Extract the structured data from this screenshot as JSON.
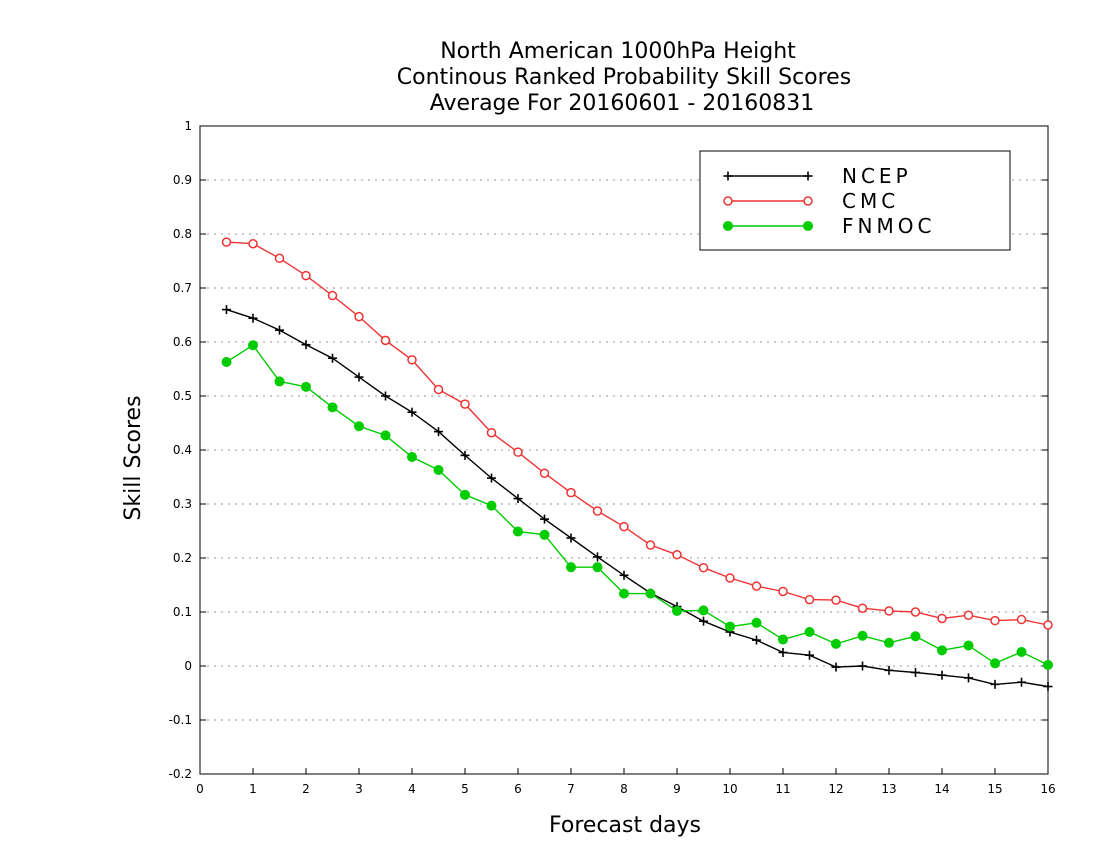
{
  "chart_data": {
    "type": "line",
    "title_lines": [
      "North American 1000hPa Height",
      "Continous Ranked Probability Skill Scores",
      "Average For 20160601 - 20160831"
    ],
    "xlabel": "Forecast days",
    "ylabel": "Skill Scores",
    "xlim": [
      0,
      16
    ],
    "ylim": [
      -0.2,
      1
    ],
    "x_ticks": [
      0,
      1,
      2,
      3,
      4,
      5,
      6,
      7,
      8,
      9,
      10,
      11,
      12,
      13,
      14,
      15,
      16
    ],
    "y_ticks": [
      -0.2,
      -0.1,
      0,
      0.1,
      0.2,
      0.3,
      0.4,
      0.5,
      0.6,
      0.7,
      0.8,
      0.9,
      1
    ],
    "y_tick_labels": [
      "-0.2",
      "-0.1",
      "0",
      "0.1",
      "0.2",
      "0.3",
      "0.4",
      "0.5",
      "0.6",
      "0.7",
      "0.8",
      "0.9",
      "1"
    ],
    "grid": "horizontal-dotted",
    "legend_position": "top-right",
    "x": [
      0.5,
      1,
      1.5,
      2,
      2.5,
      3,
      3.5,
      4,
      4.5,
      5,
      5.5,
      6,
      6.5,
      7,
      7.5,
      8,
      8.5,
      9,
      9.5,
      10,
      10.5,
      11,
      11.5,
      12,
      12.5,
      13,
      13.5,
      14,
      14.5,
      15,
      15.5,
      16
    ],
    "series": [
      {
        "name": "NCEP",
        "color": "#000000",
        "marker": "plus",
        "values": [
          0.66,
          0.644,
          0.622,
          0.595,
          0.57,
          0.535,
          0.5,
          0.47,
          0.434,
          0.39,
          0.348,
          0.31,
          0.272,
          0.237,
          0.202,
          0.168,
          0.135,
          0.11,
          0.083,
          0.063,
          0.048,
          0.025,
          0.02,
          -0.002,
          0.0,
          -0.008,
          -0.012,
          -0.017,
          -0.022,
          -0.034,
          -0.03,
          -0.038
        ]
      },
      {
        "name": "CMC",
        "color": "#ee3333",
        "marker": "open-circle",
        "values": [
          0.785,
          0.782,
          0.755,
          0.723,
          0.686,
          0.647,
          0.603,
          0.567,
          0.512,
          0.485,
          0.432,
          0.396,
          0.357,
          0.321,
          0.287,
          0.258,
          0.224,
          0.206,
          0.182,
          0.163,
          0.148,
          0.138,
          0.123,
          0.122,
          0.107,
          0.102,
          0.1,
          0.088,
          0.094,
          0.084,
          0.086,
          0.076
        ]
      },
      {
        "name": "FNMOC",
        "color": "#00cc00",
        "marker": "filled-circle",
        "values": [
          0.563,
          0.594,
          0.527,
          0.517,
          0.479,
          0.444,
          0.427,
          0.387,
          0.363,
          0.317,
          0.297,
          0.249,
          0.243,
          0.183,
          0.183,
          0.134,
          0.134,
          0.102,
          0.103,
          0.073,
          0.08,
          0.049,
          0.063,
          0.041,
          0.056,
          0.043,
          0.055,
          0.029,
          0.038,
          0.005,
          0.026,
          0.002
        ]
      }
    ]
  }
}
